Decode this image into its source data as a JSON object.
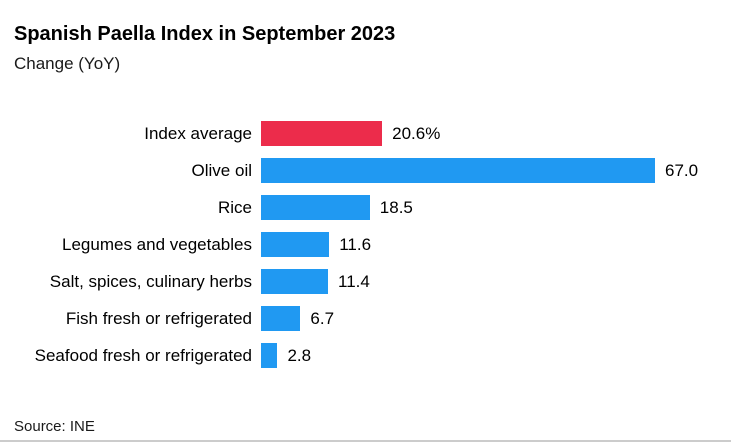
{
  "chart_data": {
    "type": "bar",
    "orientation": "horizontal",
    "title": "Spanish Paella Index in September 2023",
    "subtitle": "Change (YoY)",
    "source": "Source: INE",
    "categories": [
      "Index average",
      "Olive oil",
      "Rice",
      "Legumes and vegetables",
      "Salt, spices, culinary herbs",
      "Fish fresh or refrigerated",
      "Seafood fresh or refrigerated"
    ],
    "values": [
      20.6,
      67.0,
      18.5,
      11.6,
      11.4,
      6.7,
      2.8
    ],
    "value_labels": [
      "20.6%",
      "67.0",
      "18.5",
      "11.6",
      "11.4",
      "6.7",
      "2.8"
    ],
    "xlim": [
      0,
      67
    ],
    "grid": false,
    "legend": false,
    "highlight_color": "#EC2C4B",
    "series_color": "#2099F2",
    "bar_colors": [
      "#EC2C4B",
      "#2099F2",
      "#2099F2",
      "#2099F2",
      "#2099F2",
      "#2099F2",
      "#2099F2"
    ]
  },
  "footer": {
    "divider_color": "#cccccc"
  }
}
